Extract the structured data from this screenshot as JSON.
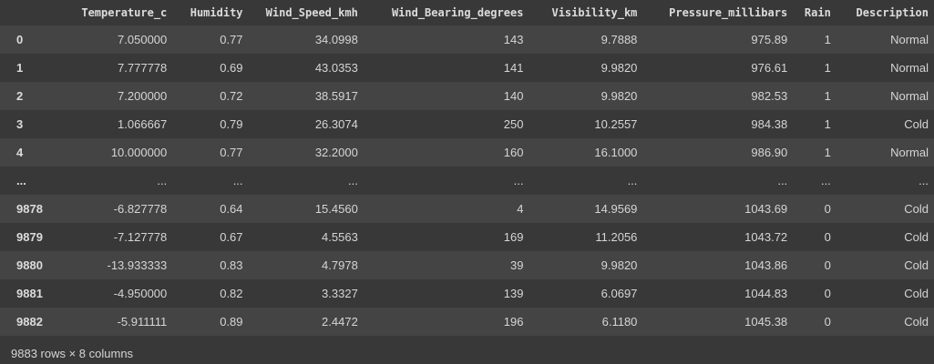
{
  "table": {
    "columns": [
      "Temperature_c",
      "Humidity",
      "Wind_Speed_kmh",
      "Wind_Bearing_degrees",
      "Visibility_km",
      "Pressure_millibars",
      "Rain",
      "Description"
    ],
    "rows": [
      {
        "index": "0",
        "cells": [
          "7.050000",
          "0.77",
          "34.0998",
          "143",
          "9.7888",
          "975.89",
          "1",
          "Normal"
        ]
      },
      {
        "index": "1",
        "cells": [
          "7.777778",
          "0.69",
          "43.0353",
          "141",
          "9.9820",
          "976.61",
          "1",
          "Normal"
        ]
      },
      {
        "index": "2",
        "cells": [
          "7.200000",
          "0.72",
          "38.5917",
          "140",
          "9.9820",
          "982.53",
          "1",
          "Normal"
        ]
      },
      {
        "index": "3",
        "cells": [
          "1.066667",
          "0.79",
          "26.3074",
          "250",
          "10.2557",
          "984.38",
          "1",
          "Cold"
        ]
      },
      {
        "index": "4",
        "cells": [
          "10.000000",
          "0.77",
          "32.2000",
          "160",
          "16.1000",
          "986.90",
          "1",
          "Normal"
        ]
      },
      {
        "index": "...",
        "cells": [
          "...",
          "...",
          "...",
          "...",
          "...",
          "...",
          "...",
          "..."
        ]
      },
      {
        "index": "9878",
        "cells": [
          "-6.827778",
          "0.64",
          "15.4560",
          "4",
          "14.9569",
          "1043.69",
          "0",
          "Cold"
        ]
      },
      {
        "index": "9879",
        "cells": [
          "-7.127778",
          "0.67",
          "4.5563",
          "169",
          "11.2056",
          "1043.72",
          "0",
          "Cold"
        ]
      },
      {
        "index": "9880",
        "cells": [
          "-13.933333",
          "0.83",
          "4.7978",
          "39",
          "9.9820",
          "1043.86",
          "0",
          "Cold"
        ]
      },
      {
        "index": "9881",
        "cells": [
          "-4.950000",
          "0.82",
          "3.3327",
          "139",
          "6.0697",
          "1044.83",
          "0",
          "Cold"
        ]
      },
      {
        "index": "9882",
        "cells": [
          "-5.911111",
          "0.89",
          "2.4472",
          "196",
          "6.1180",
          "1045.38",
          "0",
          "Cold"
        ]
      }
    ]
  },
  "footer": {
    "shape_text": "9883 rows × 8 columns"
  }
}
